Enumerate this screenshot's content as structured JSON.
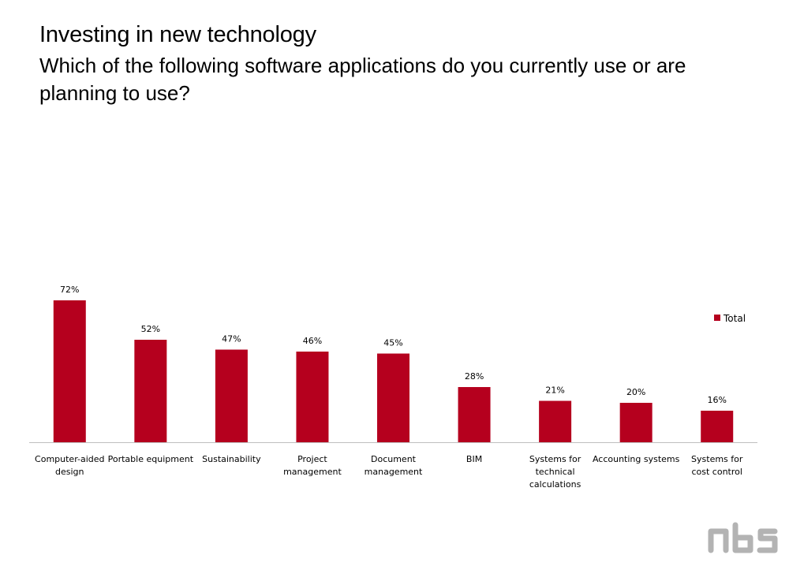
{
  "slide": {
    "title": "Investing in new technology",
    "question": "Which of the following software applications do you currently use or are planning to use?"
  },
  "logo": {
    "text": "nbs",
    "color": "#b3b3b3"
  },
  "chart_data": {
    "type": "bar",
    "title": "",
    "xlabel": "",
    "ylabel": "",
    "categories": [
      "Computer-aided design",
      "Portable equipment",
      "Sustainability",
      "Project management",
      "Document management",
      "BIM",
      "Systems for technical calculations",
      "Accounting systems",
      "Systems for cost control"
    ],
    "series": [
      {
        "name": "Total",
        "values": [
          72,
          52,
          47,
          46,
          45,
          28,
          21,
          20,
          16
        ],
        "labels": [
          "72%",
          "52%",
          "47%",
          "46%",
          "45%",
          "28%",
          "21%",
          "20%",
          "16%"
        ],
        "color": "#b5001e"
      }
    ],
    "ylim": [
      0,
      75
    ],
    "grid": false,
    "legend_position": "top-right",
    "value_unit": "%"
  }
}
